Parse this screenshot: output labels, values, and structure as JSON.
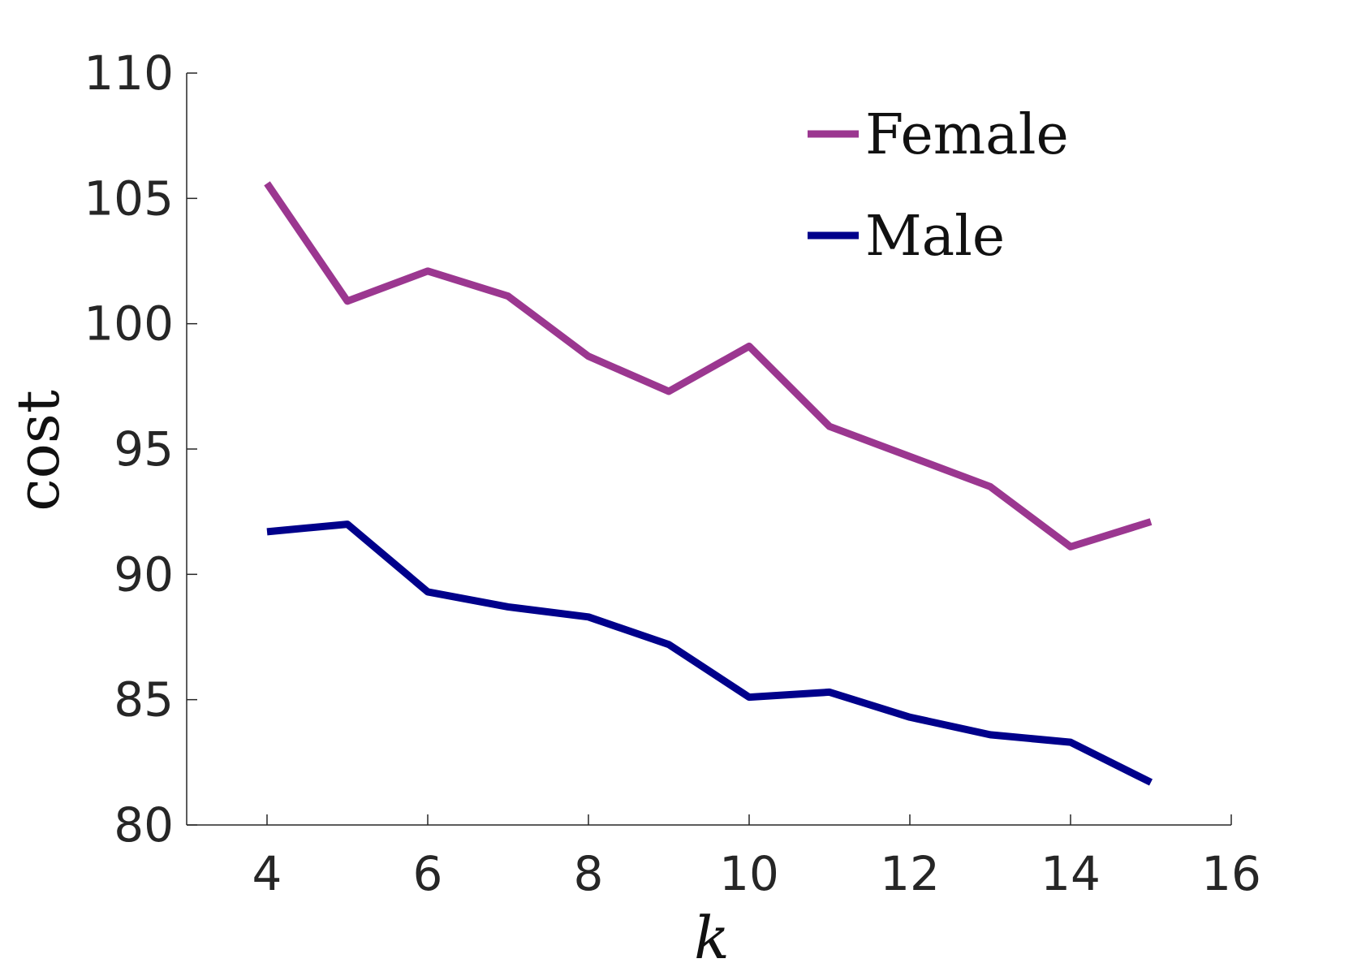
{
  "chart_data": {
    "type": "line",
    "title": "",
    "xlabel": "k",
    "ylabel": "cost",
    "xlim": [
      3,
      16
    ],
    "ylim": [
      80,
      110
    ],
    "xticks": [
      4,
      6,
      8,
      10,
      12,
      14,
      16
    ],
    "yticks": [
      80,
      85,
      90,
      95,
      100,
      105,
      110
    ],
    "xtick_labels": [
      "4",
      "6",
      "8",
      "10",
      "12",
      "14",
      "16"
    ],
    "ytick_labels": [
      "80",
      "85",
      "90",
      "95",
      "100",
      "105",
      "110"
    ],
    "grid": false,
    "legend_position": "top-right",
    "x": [
      4,
      5,
      6,
      7,
      8,
      9,
      10,
      11,
      12,
      13,
      14,
      15
    ],
    "series": [
      {
        "name": "Female",
        "color": "#9b3790",
        "values": [
          105.6,
          100.9,
          102.1,
          101.1,
          98.7,
          97.3,
          99.1,
          95.9,
          94.7,
          93.5,
          91.1,
          92.1
        ]
      },
      {
        "name": "Male",
        "color": "#00008b",
        "values": [
          91.7,
          92.0,
          89.3,
          88.7,
          88.3,
          87.2,
          85.1,
          85.3,
          84.3,
          83.6,
          83.3,
          81.7
        ]
      }
    ]
  }
}
